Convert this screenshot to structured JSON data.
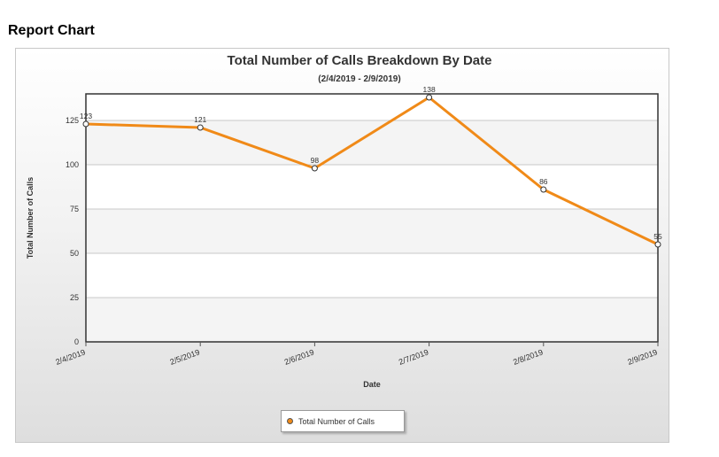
{
  "page": {
    "heading": "Report Chart"
  },
  "chart_data": {
    "type": "line",
    "title": "Total Number of Calls Breakdown By Date",
    "subtitle": "(2/4/2019 - 2/9/2019)",
    "xlabel": "Date",
    "ylabel": "Total Number of Calls",
    "categories": [
      "2/4/2019",
      "2/5/2019",
      "2/6/2019",
      "2/7/2019",
      "2/8/2019",
      "2/9/2019"
    ],
    "series": [
      {
        "name": "Total Number of Calls",
        "values": [
          123,
          121,
          98,
          138,
          86,
          55
        ],
        "color": "#f08a18"
      }
    ],
    "ylim": [
      0,
      140
    ],
    "yticks": [
      0,
      25,
      50,
      75,
      100,
      125
    ],
    "grid": true,
    "legend_position": "bottom-center"
  }
}
